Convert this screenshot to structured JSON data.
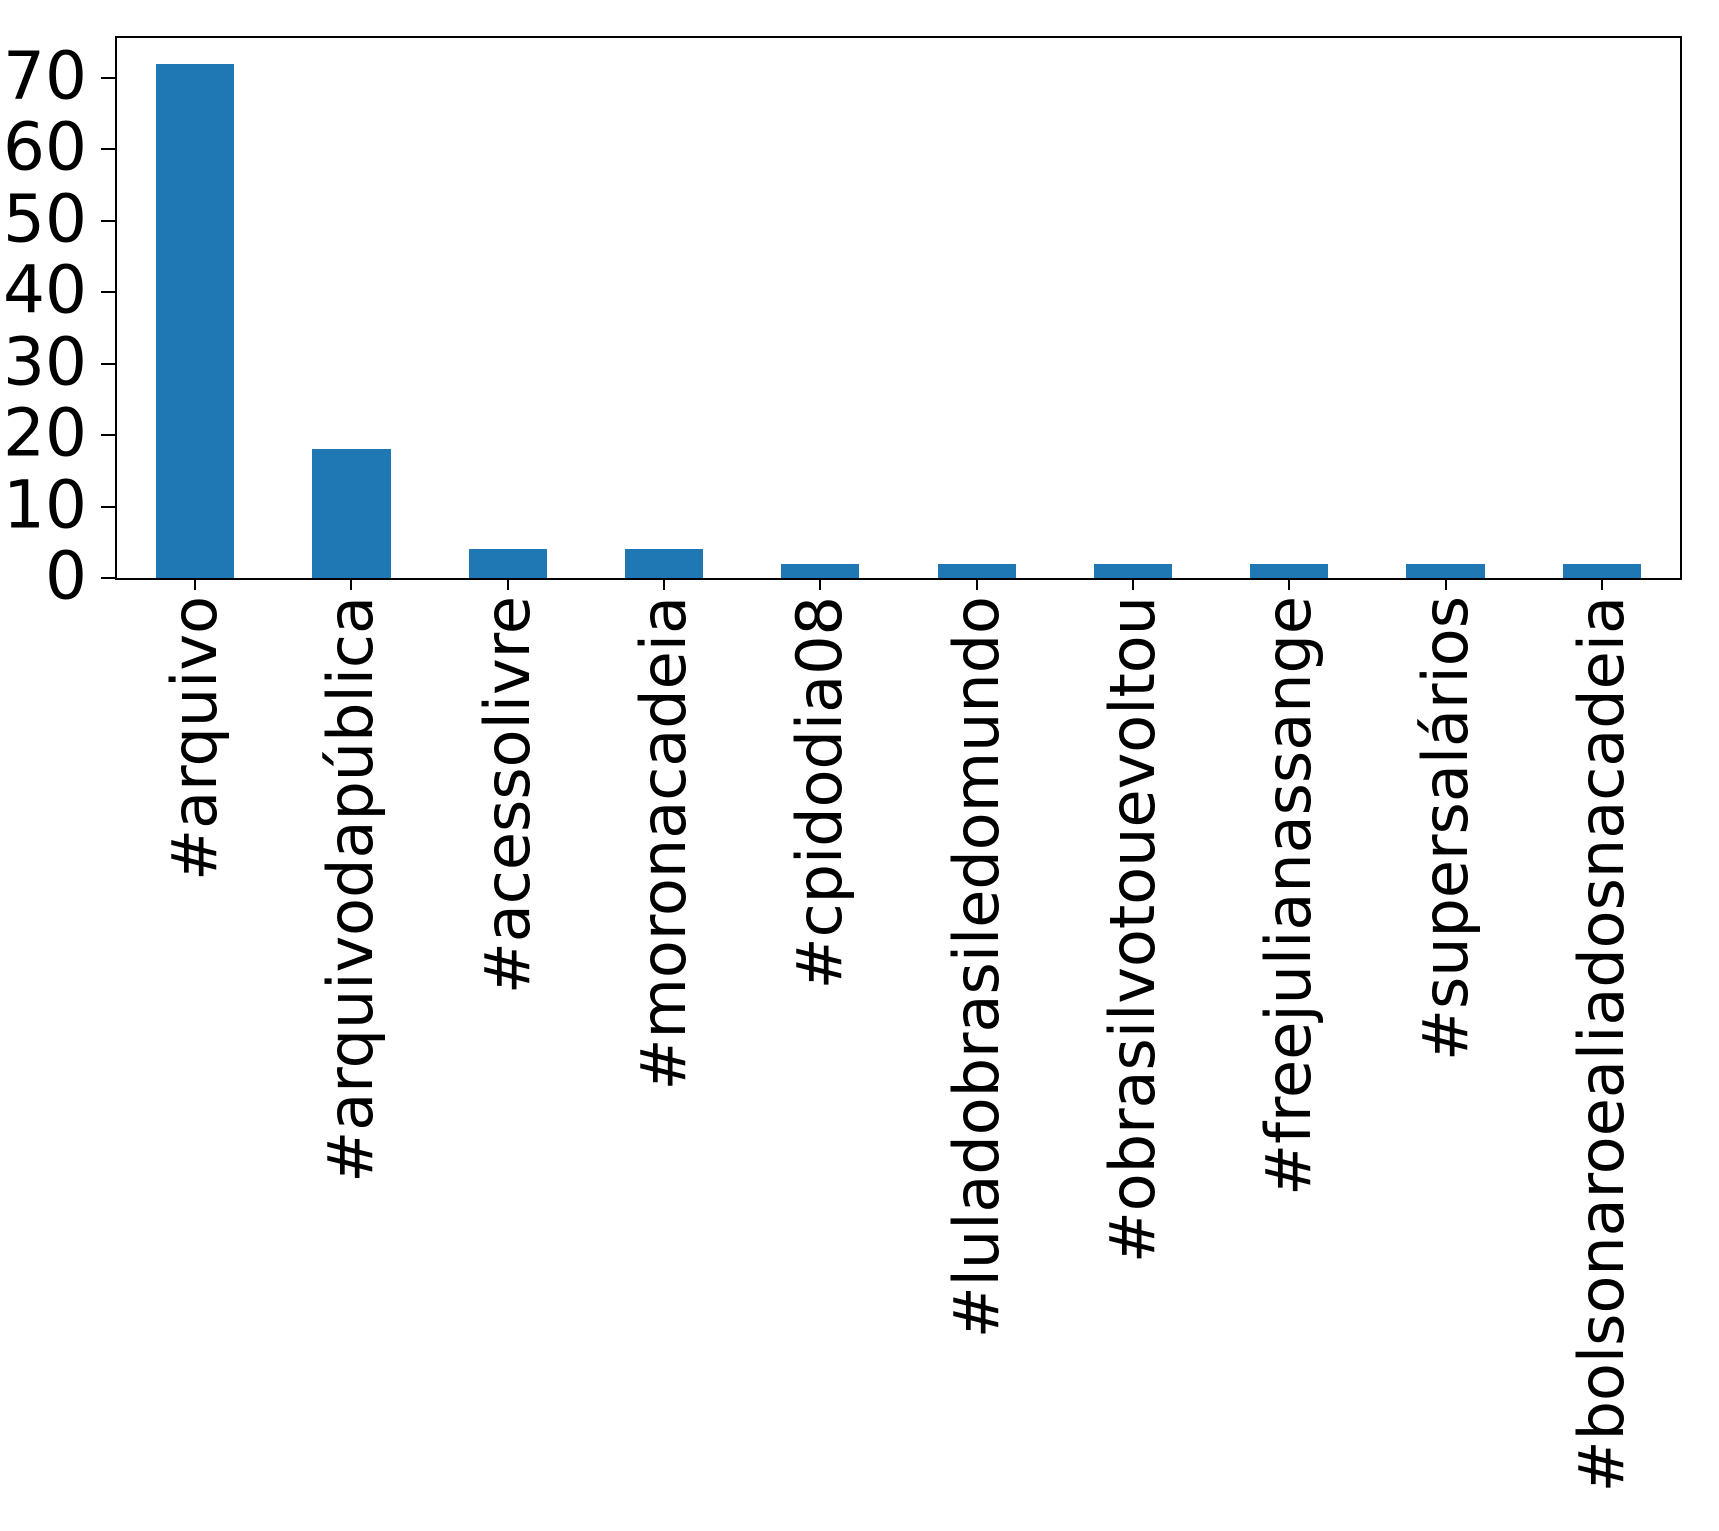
{
  "figure": {
    "background_color": "#ffffff",
    "text_color": "#000000"
  },
  "chart_data": {
    "type": "bar",
    "title": "",
    "xlabel": "",
    "ylabel": "",
    "categories": [
      "#arquivo",
      "#arquivodapública",
      "#acessolivre",
      "#moronacadeia",
      "#cpidodia08",
      "#luladobrasiledomundo",
      "#obrasilvotouevoltou",
      "#freejulianassange",
      "#supersalários",
      "#bolsonaroealiadosnacadeia"
    ],
    "values": [
      72,
      18,
      4,
      4,
      2,
      2,
      2,
      2,
      2,
      2
    ],
    "yticks": [
      0,
      10,
      20,
      30,
      40,
      50,
      60,
      70
    ],
    "ylim": [
      0,
      75.6
    ],
    "bar_color": "#1f77b4",
    "bar_width_fraction": 0.5,
    "grid": false,
    "legend": false,
    "x_tick_label_rotation": 90
  }
}
